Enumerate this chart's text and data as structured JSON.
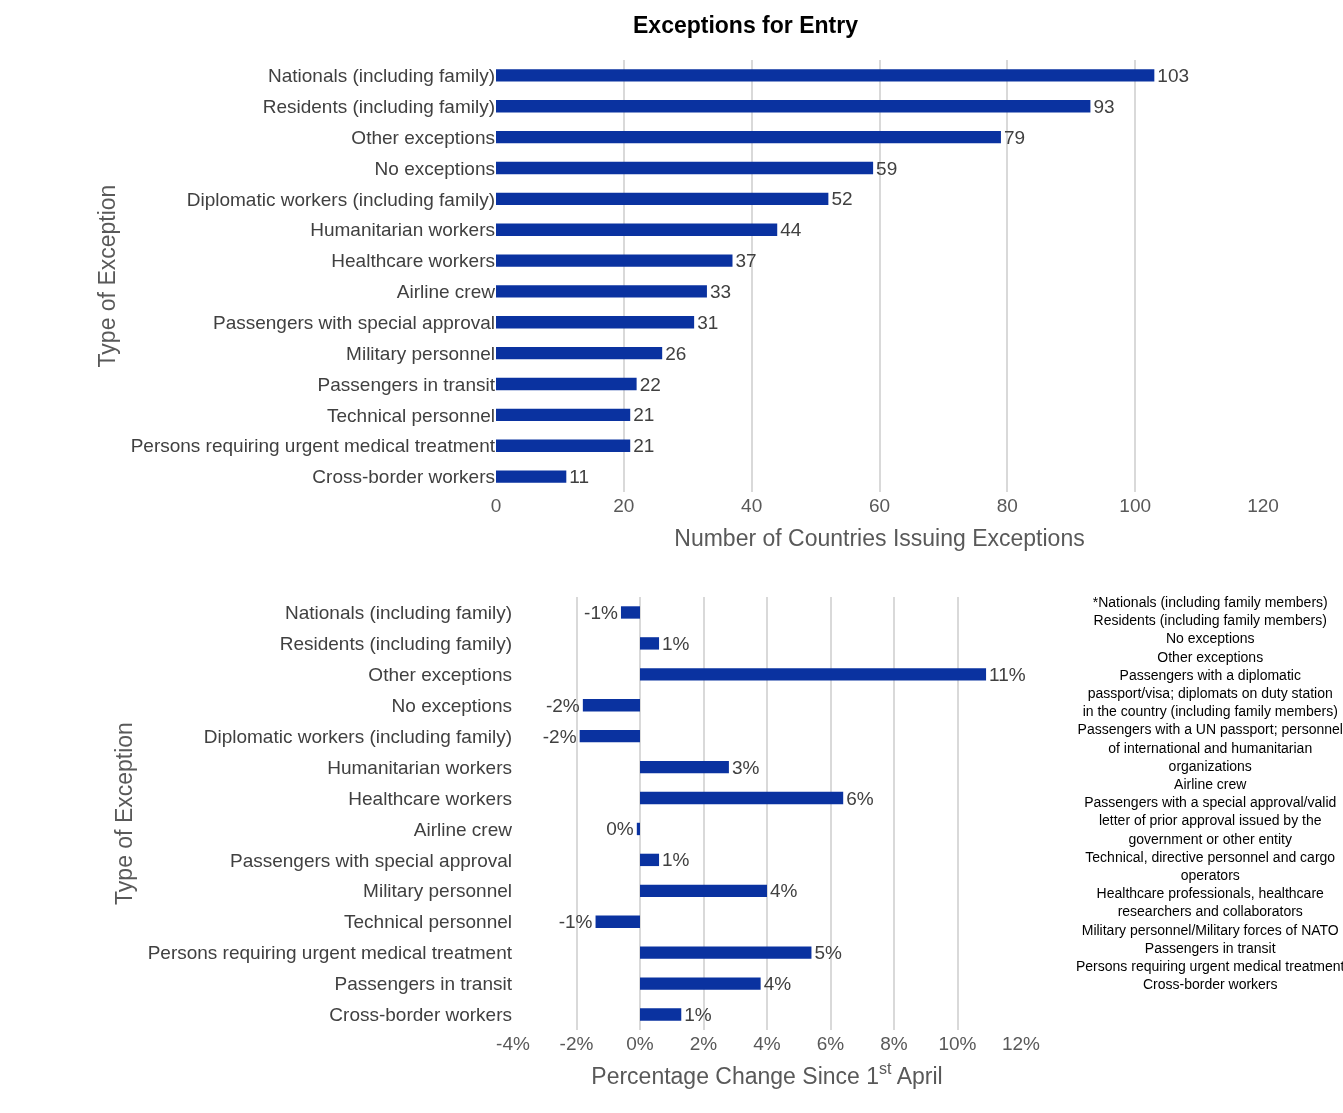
{
  "chart_data": [
    {
      "type": "bar",
      "orientation": "horizontal",
      "title": "Exceptions for Entry",
      "xlabel": "Number of Countries Issuing Exceptions",
      "ylabel": "Type of Exception",
      "categories": [
        "Nationals (including family)",
        "Residents (including family)",
        "Other exceptions",
        "No exceptions",
        "Diplomatic workers (including family)",
        "Humanitarian workers",
        "Healthcare workers",
        "Airline crew",
        "Passengers with special approval",
        "Military personnel",
        "Passengers in transit",
        "Technical personnel",
        "Persons requiring urgent medical treatment",
        "Cross-border workers"
      ],
      "values": [
        103,
        93,
        79,
        59,
        52,
        44,
        37,
        33,
        31,
        26,
        22,
        21,
        21,
        11
      ],
      "color": "#0a32a0",
      "data_labels": true,
      "xlim": [
        0,
        120
      ],
      "xticks": [
        0,
        20,
        40,
        60,
        80,
        100,
        120
      ],
      "grid": "x"
    },
    {
      "type": "bar",
      "orientation": "horizontal",
      "xlabel": "Percentage Change Since 1$^{st}$ April",
      "ylabel": "Type of Exception",
      "categories": [
        "Nationals (including family)",
        "Residents (including family)",
        "Other exceptions",
        "No exceptions",
        "Diplomatic workers (including family)",
        "Humanitarian workers",
        "Healthcare workers",
        "Airline crew",
        "Passengers with special approval",
        "Military personnel",
        "Technical personnel",
        "Persons requiring urgent medical treatment",
        "Passengers in transit",
        "Cross-border workers"
      ],
      "values": [
        -0.6,
        0.6,
        10.9,
        -1.8,
        -1.9,
        2.8,
        6.4,
        -0.1,
        0.6,
        4.0,
        -1.4,
        5.4,
        3.8,
        1.3
      ],
      "value_labels": [
        "-1%",
        "1%",
        "11%",
        "-2%",
        "-2%",
        "3%",
        "6%",
        "0%",
        "1%",
        "4%",
        "-1%",
        "5%",
        "4%",
        "1%"
      ],
      "color": "#0a32a0",
      "xlim": [
        -4,
        12
      ],
      "xticks": [
        {
          "value": -4,
          "label": "-4%"
        },
        {
          "value": -2,
          "label": "-2%"
        },
        {
          "value": 0,
          "label": "0%"
        },
        {
          "value": 2,
          "label": "2%"
        },
        {
          "value": 4,
          "label": "4%"
        },
        {
          "value": 6,
          "label": "6%"
        },
        {
          "value": 8,
          "label": "8%"
        },
        {
          "value": 10,
          "label": "10%"
        },
        {
          "value": 12,
          "label": "12%"
        }
      ],
      "grid": "x",
      "annotations": [
        "*Nationals (including family members)",
        "Residents (including family members)",
        "No exceptions",
        "Other exceptions",
        "Passengers with a diplomatic passport/visa; diplomats on duty station in the country (including family members)",
        "Passengers with a UN passport; personnel of international and humanitarian organizations",
        "Airline crew",
        "Passengers with a special approval/valid letter of prior approval issued by the government or other entity",
        "Technical, directive personnel and cargo operators",
        "Healthcare professionals, healthcare researchers and collaborators",
        "Military personnel/Military forces of NATO",
        "Passengers in transit",
        "Persons requiring urgent medical treatment",
        "Cross-border workers"
      ]
    }
  ]
}
